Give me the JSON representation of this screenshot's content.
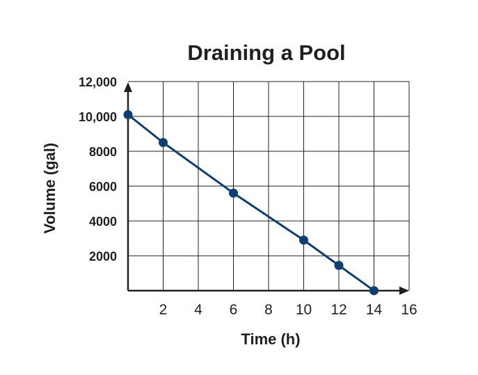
{
  "chart_data": {
    "type": "line",
    "title": "Draining a Pool",
    "xlabel": "Time (h)",
    "ylabel": "Volume (gal)",
    "xlim": [
      0,
      16
    ],
    "ylim": [
      0,
      12000
    ],
    "xticks": [
      2,
      4,
      6,
      8,
      10,
      12,
      14,
      16
    ],
    "xtick_labels": [
      "2",
      "4",
      "6",
      "8",
      "10",
      "12",
      "14",
      "16"
    ],
    "yticks": [
      2000,
      4000,
      6000,
      8000,
      10000,
      12000
    ],
    "ytick_labels": [
      "2000",
      "4000",
      "6000",
      "8000",
      "10,000",
      "12,000"
    ],
    "grid": true,
    "series": [
      {
        "x": [
          0,
          2,
          6,
          10,
          12,
          14
        ],
        "y": [
          10100,
          8500,
          5600,
          2900,
          1450,
          0
        ],
        "color": "#0d3f73"
      }
    ]
  }
}
